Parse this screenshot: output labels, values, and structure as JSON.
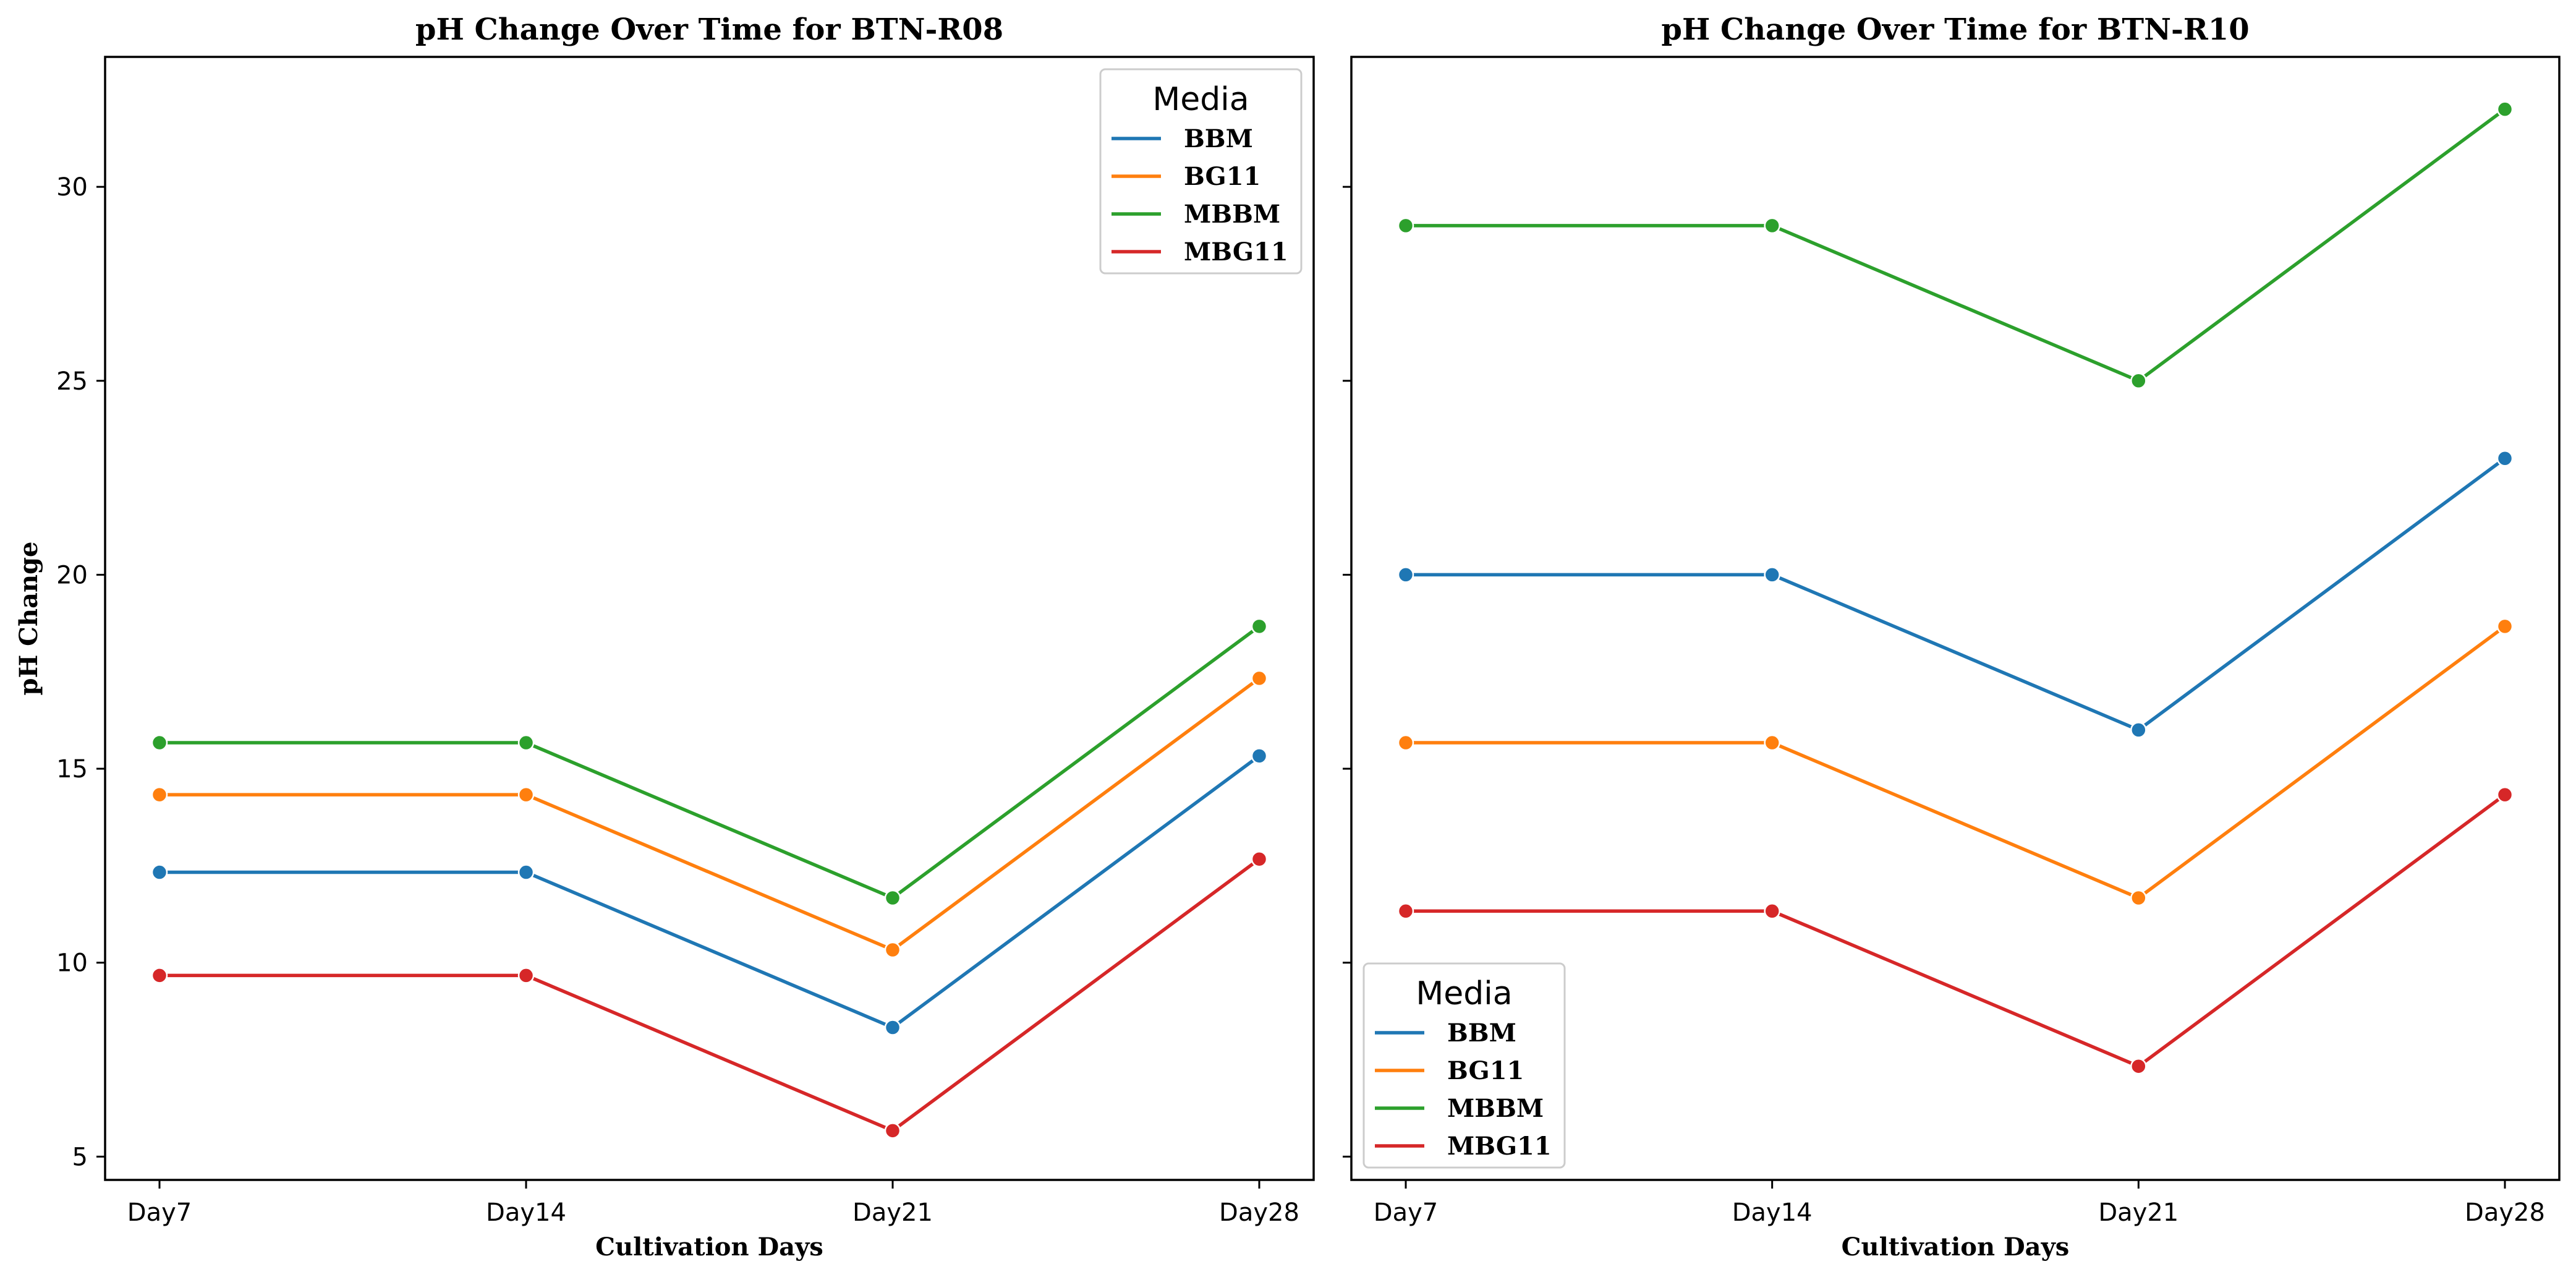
{
  "colors": {
    "BBM": "#1f77b4",
    "BG11": "#ff7f0e",
    "MBBM": "#2ca02c",
    "MBG11": "#d62728"
  },
  "chart_data": [
    {
      "type": "line",
      "title": "pH Change Over Time for BTN-R08",
      "xlabel": "Cultivation Days",
      "ylabel": "pH Change",
      "categories": [
        "Day7",
        "Day14",
        "Day21",
        "Day28"
      ],
      "ylim": [
        4.4,
        33.35
      ],
      "yticks": [
        5,
        10,
        15,
        20,
        25,
        30
      ],
      "grid": false,
      "legend": {
        "title": "Media",
        "position": "top-right"
      },
      "series": [
        {
          "name": "BBM",
          "values": [
            12.33,
            12.33,
            8.33,
            15.33
          ]
        },
        {
          "name": "BG11",
          "values": [
            14.33,
            14.33,
            10.33,
            17.33
          ]
        },
        {
          "name": "MBBM",
          "values": [
            15.67,
            15.67,
            11.67,
            18.67
          ]
        },
        {
          "name": "MBG11",
          "values": [
            9.67,
            9.67,
            5.67,
            12.67
          ]
        }
      ]
    },
    {
      "type": "line",
      "title": "pH Change Over Time for BTN-R10",
      "xlabel": "Cultivation Days",
      "ylabel": "",
      "categories": [
        "Day7",
        "Day14",
        "Day21",
        "Day28"
      ],
      "ylim": [
        4.4,
        33.35
      ],
      "yticks": [
        5,
        10,
        15,
        20,
        25,
        30
      ],
      "grid": false,
      "legend": {
        "title": "Media",
        "position": "bottom-left"
      },
      "series": [
        {
          "name": "BBM",
          "values": [
            20,
            20,
            16,
            23
          ]
        },
        {
          "name": "BG11",
          "values": [
            15.67,
            15.67,
            11.67,
            18.67
          ]
        },
        {
          "name": "MBBM",
          "values": [
            29,
            29,
            25,
            32
          ]
        },
        {
          "name": "MBG11",
          "values": [
            11.33,
            11.33,
            7.33,
            14.33
          ]
        }
      ]
    }
  ]
}
